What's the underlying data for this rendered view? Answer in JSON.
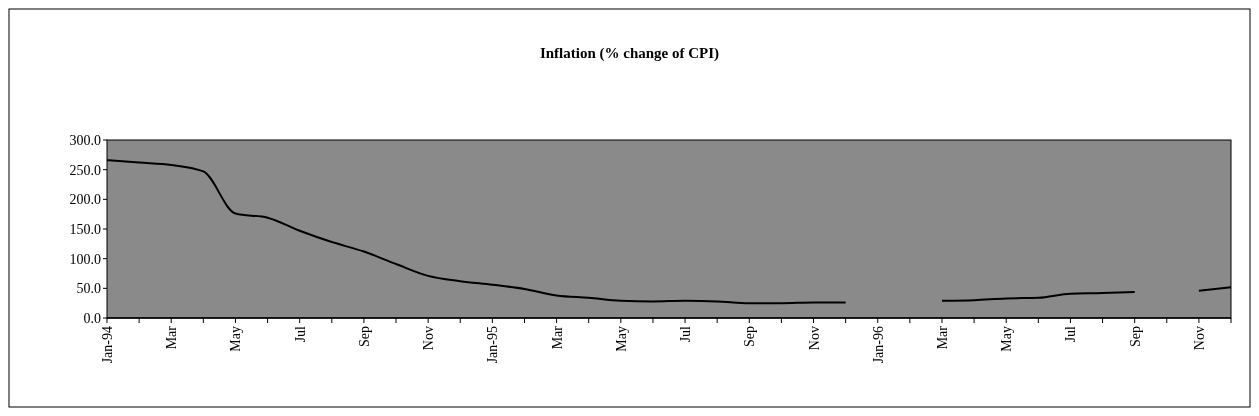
{
  "chart_data": {
    "type": "line",
    "title": "Inflation (% change of CPI)",
    "categories": [
      "Jan-94",
      null,
      "Mar",
      null,
      "May",
      null,
      "Jul",
      null,
      "Sep",
      null,
      "Nov",
      null,
      "Jan-95",
      null,
      "Mar",
      null,
      "May",
      null,
      "Jul",
      null,
      "Sep",
      null,
      "Nov",
      null,
      "Jan-96",
      null,
      "Mar",
      null,
      "May",
      null,
      "Jul",
      null,
      "Sep",
      null,
      "Nov",
      null
    ],
    "series": [
      {
        "color": "#000000",
        "values": [
          266,
          262,
          258,
          247,
          176,
          169,
          147,
          128,
          112,
          91,
          71,
          62,
          56,
          49,
          38,
          34,
          29,
          28,
          29,
          28,
          25,
          25,
          26,
          26,
          null,
          null,
          29,
          30,
          33,
          34,
          41,
          42,
          44,
          null,
          46,
          52
        ]
      }
    ],
    "ylim": [
      0,
      300
    ],
    "yticks": [
      {
        "value": 0,
        "label": "0.0"
      },
      {
        "value": 50,
        "label": "50.0"
      },
      {
        "value": 100,
        "label": "100.0"
      },
      {
        "value": 150,
        "label": "150.0"
      },
      {
        "value": 200,
        "label": "200.0"
      },
      {
        "value": 250,
        "label": "250.0"
      },
      {
        "value": 300,
        "label": "300.0"
      }
    ],
    "grid": false,
    "marker": "none",
    "line_style": "solid"
  }
}
